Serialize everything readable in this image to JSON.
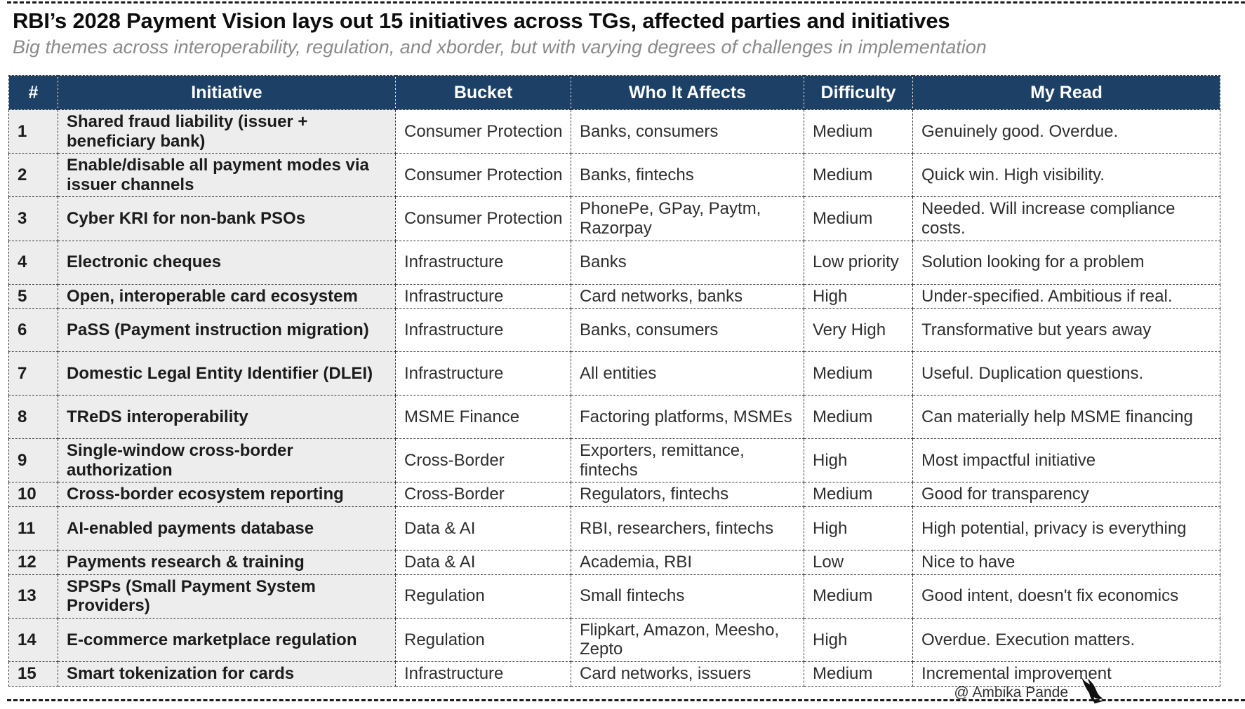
{
  "page": {
    "title": "RBI’s 2028 Payment Vision lays out 15 initiatives across TGs, affected parties and initiatives",
    "subtitle": "Big themes across interoperability, regulation, and xborder, but with varying degrees of challenges in implementation",
    "credit": "@ Ambika Pande",
    "credit_icon": "bird-icon"
  },
  "colors": {
    "header_bg": "#1d4166",
    "shaded_column_bg": "#ededed",
    "border": "#3a3a3a",
    "title_text": "#0d0d0d",
    "subtitle_text": "#8a8a8a"
  },
  "table": {
    "columns": [
      "#",
      "Initiative",
      "Bucket",
      "Who It Affects",
      "Difficulty",
      "My Read"
    ],
    "rows": [
      {
        "num": "1",
        "initiative": "Shared fraud liability (issuer + beneficiary bank)",
        "bucket": "Consumer Protection",
        "who": "Banks, consumers",
        "difficulty": "Medium",
        "read": "Genuinely good. Overdue."
      },
      {
        "num": "2",
        "initiative": "Enable/disable all payment modes via issuer channels",
        "bucket": "Consumer Protection",
        "who": "Banks, fintechs",
        "difficulty": "Medium",
        "read": "Quick win. High visibility."
      },
      {
        "num": "3",
        "initiative": "Cyber KRI for non-bank PSOs",
        "bucket": "Consumer Protection",
        "who": "PhonePe, GPay, Paytm, Razorpay",
        "difficulty": "Medium",
        "read": "Needed. Will increase compliance costs."
      },
      {
        "num": "4",
        "initiative": "Electronic cheques",
        "bucket": "Infrastructure",
        "who": "Banks",
        "difficulty": "Low priority",
        "read": "Solution looking for a problem"
      },
      {
        "num": "5",
        "initiative": "Open, interoperable card ecosystem",
        "bucket": "Infrastructure",
        "who": "Card networks, banks",
        "difficulty": "High",
        "read": "Under-specified. Ambitious if real."
      },
      {
        "num": "6",
        "initiative": "PaSS (Payment instruction migration)",
        "bucket": "Infrastructure",
        "who": "Banks, consumers",
        "difficulty": "Very High",
        "read": "Transformative but years away"
      },
      {
        "num": "7",
        "initiative": "Domestic Legal Entity Identifier (DLEI)",
        "bucket": "Infrastructure",
        "who": "All entities",
        "difficulty": "Medium",
        "read": "Useful. Duplication questions."
      },
      {
        "num": "8",
        "initiative": "TReDS interoperability",
        "bucket": "MSME Finance",
        "who": "Factoring platforms, MSMEs",
        "difficulty": "Medium",
        "read": "Can materially help MSME financing"
      },
      {
        "num": "9",
        "initiative": "Single-window cross-border authorization",
        "bucket": "Cross-Border",
        "who": "Exporters, remittance, fintechs",
        "difficulty": "High",
        "read": "Most impactful initiative"
      },
      {
        "num": "10",
        "initiative": "Cross-border ecosystem reporting",
        "bucket": "Cross-Border",
        "who": "Regulators, fintechs",
        "difficulty": "Medium",
        "read": "Good for transparency"
      },
      {
        "num": "11",
        "initiative": "AI-enabled payments database",
        "bucket": "Data & AI",
        "who": "RBI, researchers, fintechs",
        "difficulty": "High",
        "read": "High potential, privacy is everything"
      },
      {
        "num": "12",
        "initiative": "Payments research & training",
        "bucket": "Data & AI",
        "who": "Academia, RBI",
        "difficulty": "Low",
        "read": "Nice to have"
      },
      {
        "num": "13",
        "initiative": "SPSPs (Small Payment System Providers)",
        "bucket": "Regulation",
        "who": "Small fintechs",
        "difficulty": "Medium",
        "read": "Good intent, doesn't fix economics"
      },
      {
        "num": "14",
        "initiative": "E-commerce marketplace regulation",
        "bucket": "Regulation",
        "who": "Flipkart, Amazon, Meesho, Zepto",
        "difficulty": "High",
        "read": "Overdue. Execution matters."
      },
      {
        "num": "15",
        "initiative": "Smart tokenization for cards",
        "bucket": "Infrastructure",
        "who": "Card networks, issuers",
        "difficulty": "Medium",
        "read": "Incremental improvement"
      }
    ]
  }
}
